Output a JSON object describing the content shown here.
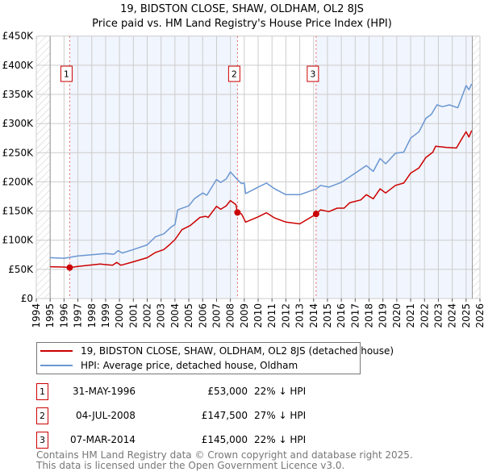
{
  "chart_data": {
    "type": "line",
    "title": "19, BIDSTON CLOSE, SHAW, OLDHAM, OL2 8JS",
    "subtitle": "Price paid vs. HM Land Registry's House Price Index (HPI)",
    "xlim": [
      1994,
      2026
    ],
    "ylim": [
      0,
      450000
    ],
    "y_ticks": [
      0,
      50000,
      100000,
      150000,
      200000,
      250000,
      300000,
      350000,
      400000,
      450000
    ],
    "y_tick_labels": [
      "£0",
      "£50K",
      "£100K",
      "£150K",
      "£200K",
      "£250K",
      "£300K",
      "£350K",
      "£400K",
      "£450K"
    ],
    "x_ticks": [
      "1994",
      "1995",
      "1996",
      "1997",
      "1998",
      "1999",
      "2000",
      "2001",
      "2002",
      "2003",
      "2004",
      "2005",
      "2006",
      "2007",
      "2008",
      "2009",
      "2010",
      "2011",
      "2012",
      "2013",
      "2014",
      "2015",
      "2016",
      "2017",
      "2018",
      "2019",
      "2020",
      "2021",
      "2022",
      "2023",
      "2024",
      "2025",
      "2026"
    ],
    "grid": true,
    "series": [
      {
        "name": "19, BIDSTON CLOSE, SHAW, OLDHAM, OL2 8JS (detached house)",
        "color": "#cc0000",
        "points": [
          [
            1995,
            54500
          ],
          [
            1996,
            54000
          ],
          [
            1996.4,
            53000
          ],
          [
            1997,
            55000
          ],
          [
            1998.6,
            59000
          ],
          [
            1999.5,
            57000
          ],
          [
            1999.8,
            62000
          ],
          [
            2000.1,
            57000
          ],
          [
            2001,
            63000
          ],
          [
            2002,
            70000
          ],
          [
            2002.6,
            79000
          ],
          [
            2003.2,
            84000
          ],
          [
            2003.6,
            92000
          ],
          [
            2004,
            101000
          ],
          [
            2004.5,
            118000
          ],
          [
            2005.1,
            125000
          ],
          [
            2005.8,
            139000
          ],
          [
            2006.2,
            141000
          ],
          [
            2006.4,
            139000
          ],
          [
            2007,
            158000
          ],
          [
            2007.3,
            153000
          ],
          [
            2007.7,
            159000
          ],
          [
            2008,
            168000
          ],
          [
            2008.4,
            161000
          ],
          [
            2008.5,
            147500
          ],
          [
            2008.8,
            145000
          ],
          [
            2009.1,
            131000
          ],
          [
            2010,
            140000
          ],
          [
            2010.6,
            147000
          ],
          [
            2011.2,
            138000
          ],
          [
            2012,
            131000
          ],
          [
            2013,
            128000
          ],
          [
            2014.2,
            145000
          ],
          [
            2014.5,
            152000
          ],
          [
            2015.1,
            149000
          ],
          [
            2015.7,
            155000
          ],
          [
            2016.2,
            155000
          ],
          [
            2016.6,
            164000
          ],
          [
            2017.4,
            169000
          ],
          [
            2017.8,
            178000
          ],
          [
            2018.3,
            171000
          ],
          [
            2018.8,
            188000
          ],
          [
            2019.2,
            181000
          ],
          [
            2019.9,
            194000
          ],
          [
            2020.5,
            198000
          ],
          [
            2021,
            215000
          ],
          [
            2021.6,
            224000
          ],
          [
            2022.1,
            242000
          ],
          [
            2022.6,
            251000
          ],
          [
            2022.8,
            261000
          ],
          [
            2023.6,
            259000
          ],
          [
            2024.3,
            258000
          ],
          [
            2024.6,
            270000
          ],
          [
            2025,
            286000
          ],
          [
            2025.2,
            277000
          ],
          [
            2025.4,
            288000
          ]
        ]
      },
      {
        "name": "HPI: Average price, detached house, Oldham",
        "color": "#6a96d2",
        "points": [
          [
            1995,
            70000
          ],
          [
            1996,
            69000
          ],
          [
            1997,
            73000
          ],
          [
            1998,
            75000
          ],
          [
            1999,
            77000
          ],
          [
            1999.6,
            76000
          ],
          [
            1999.9,
            82000
          ],
          [
            2000.2,
            78000
          ],
          [
            2001,
            84000
          ],
          [
            2002,
            92000
          ],
          [
            2002.6,
            106000
          ],
          [
            2003.2,
            111000
          ],
          [
            2003.7,
            122000
          ],
          [
            2004,
            127000
          ],
          [
            2004.2,
            152000
          ],
          [
            2005,
            159000
          ],
          [
            2005.4,
            171000
          ],
          [
            2006,
            181000
          ],
          [
            2006.3,
            177000
          ],
          [
            2007,
            204000
          ],
          [
            2007.3,
            199000
          ],
          [
            2007.7,
            205000
          ],
          [
            2008,
            217000
          ],
          [
            2008.5,
            204000
          ],
          [
            2008.8,
            197000
          ],
          [
            2009,
            198000
          ],
          [
            2009.1,
            180000
          ],
          [
            2010,
            191000
          ],
          [
            2010.6,
            198000
          ],
          [
            2011.2,
            188000
          ],
          [
            2012,
            178000
          ],
          [
            2013,
            178000
          ],
          [
            2014.2,
            188000
          ],
          [
            2014.5,
            194000
          ],
          [
            2015.1,
            191000
          ],
          [
            2016,
            199000
          ],
          [
            2017,
            215000
          ],
          [
            2017.8,
            228000
          ],
          [
            2018.3,
            218000
          ],
          [
            2018.8,
            240000
          ],
          [
            2019.2,
            231000
          ],
          [
            2019.9,
            249000
          ],
          [
            2020.5,
            251000
          ],
          [
            2021,
            275000
          ],
          [
            2021.6,
            286000
          ],
          [
            2022.1,
            309000
          ],
          [
            2022.5,
            316000
          ],
          [
            2022.9,
            332000
          ],
          [
            2023.3,
            329000
          ],
          [
            2023.8,
            332000
          ],
          [
            2024.4,
            327000
          ],
          [
            2024.7,
            346000
          ],
          [
            2025,
            365000
          ],
          [
            2025.2,
            358000
          ],
          [
            2025.4,
            368000
          ]
        ]
      }
    ],
    "sales": [
      {
        "label": "1",
        "year": 1996.41,
        "price": 53000
      },
      {
        "label": "2",
        "year": 2008.51,
        "price": 147500
      },
      {
        "label": "3",
        "year": 2014.18,
        "price": 145000
      }
    ],
    "legend_placement": "below"
  },
  "legend": {
    "property": "19, BIDSTON CLOSE, SHAW, OLDHAM, OL2 8JS (detached house)",
    "hpi": "HPI: Average price, detached house, Oldham"
  },
  "transactions": [
    {
      "num": "1",
      "date": "31-MAY-1996",
      "price": "£53,000",
      "hpi": "22% ↓ HPI"
    },
    {
      "num": "2",
      "date": "04-JUL-2008",
      "price": "£147,500",
      "hpi": "27% ↓ HPI"
    },
    {
      "num": "3",
      "date": "07-MAR-2014",
      "price": "£145,000",
      "hpi": "22% ↓ HPI"
    }
  ],
  "footer": {
    "line1": "Contains HM Land Registry data © Crown copyright and database right 2025.",
    "line2": "This data is licensed under the Open Government Licence v3.0."
  }
}
